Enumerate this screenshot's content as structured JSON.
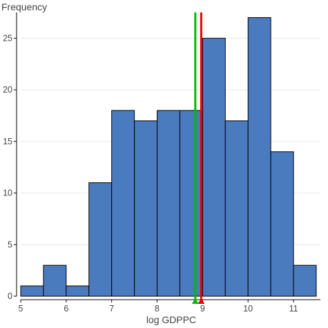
{
  "chart_data": {
    "type": "histogram",
    "ylabel": "Frequency",
    "xlabel": "log GDPPC",
    "xlim": [
      5,
      11.5
    ],
    "ylim": [
      0,
      27.5
    ],
    "x_ticks": [
      5,
      6,
      7,
      8,
      9,
      10,
      11
    ],
    "y_ticks": [
      0,
      5,
      10,
      15,
      20,
      25
    ],
    "grid": true,
    "bin_width": 0.5,
    "bins": [
      {
        "start": 5.0,
        "end": 5.5,
        "count": 1
      },
      {
        "start": 5.5,
        "end": 6.0,
        "count": 3
      },
      {
        "start": 6.0,
        "end": 6.5,
        "count": 1
      },
      {
        "start": 6.5,
        "end": 7.0,
        "count": 11
      },
      {
        "start": 7.0,
        "end": 7.5,
        "count": 18
      },
      {
        "start": 7.5,
        "end": 8.0,
        "count": 17
      },
      {
        "start": 8.0,
        "end": 8.5,
        "count": 18
      },
      {
        "start": 8.5,
        "end": 9.0,
        "count": 18
      },
      {
        "start": 9.0,
        "end": 9.5,
        "count": 25
      },
      {
        "start": 9.5,
        "end": 10.0,
        "count": 17
      },
      {
        "start": 10.0,
        "end": 10.5,
        "count": 27
      },
      {
        "start": 10.5,
        "end": 11.0,
        "count": 14
      },
      {
        "start": 11.0,
        "end": 11.5,
        "count": 3
      }
    ],
    "reference_lines": [
      {
        "x": 8.84,
        "color": "#00bb00"
      },
      {
        "x": 8.97,
        "color": "#ee0000"
      }
    ],
    "bar_color": "#4a7bbf",
    "bar_edge_color": "#000000"
  }
}
